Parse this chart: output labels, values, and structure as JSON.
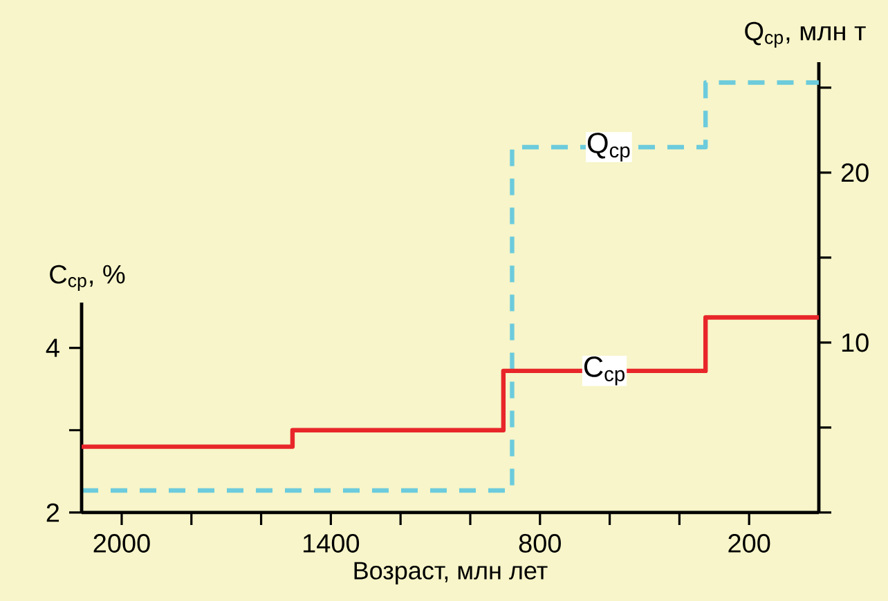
{
  "chart_data": {
    "type": "step",
    "xlabel": "Возраст, млн лет",
    "ylabel": "C$_{ср}$, %",
    "y2label": "Q$_{ср}$, млн т",
    "xlim": [
      2115,
      0
    ],
    "xticks": [
      2000,
      {
        "value": 1800,
        "label": null
      },
      {
        "value": 1600,
        "label": null
      },
      1400,
      {
        "value": 1200,
        "label": null
      },
      {
        "value": 1000,
        "label": null
      },
      800,
      {
        "value": 600,
        "label": null
      },
      {
        "value": 400,
        "label": null
      },
      200
    ],
    "ylim": [
      2,
      4.55
    ],
    "yticks": [
      2,
      {
        "value": 3,
        "label": null
      },
      4
    ],
    "y2lim": [
      0,
      26.5
    ],
    "y2ticks": [
      {
        "value": 0,
        "label": null
      },
      {
        "value": 5,
        "label": null
      },
      10,
      {
        "value": 15,
        "label": null
      },
      20,
      {
        "value": 25,
        "label": null
      }
    ],
    "legend": false,
    "grid": false,
    "series": [
      {
        "name": "C$_{ср}$",
        "color": "#e8262a",
        "line_style": "solid",
        "x": [
          2115,
          1510,
          905,
          325,
          0
        ],
        "values": [
          2.8,
          3.0,
          3.72,
          4.37,
          4.37
        ]
      },
      {
        "name": "Q$_{ср}$",
        "color": "#6ccbdc",
        "line_style": "dashed",
        "axis": "y2",
        "x": [
          2115,
          880,
          325,
          0
        ],
        "values": [
          1.3,
          21.5,
          25.3,
          25.3
        ]
      }
    ]
  }
}
